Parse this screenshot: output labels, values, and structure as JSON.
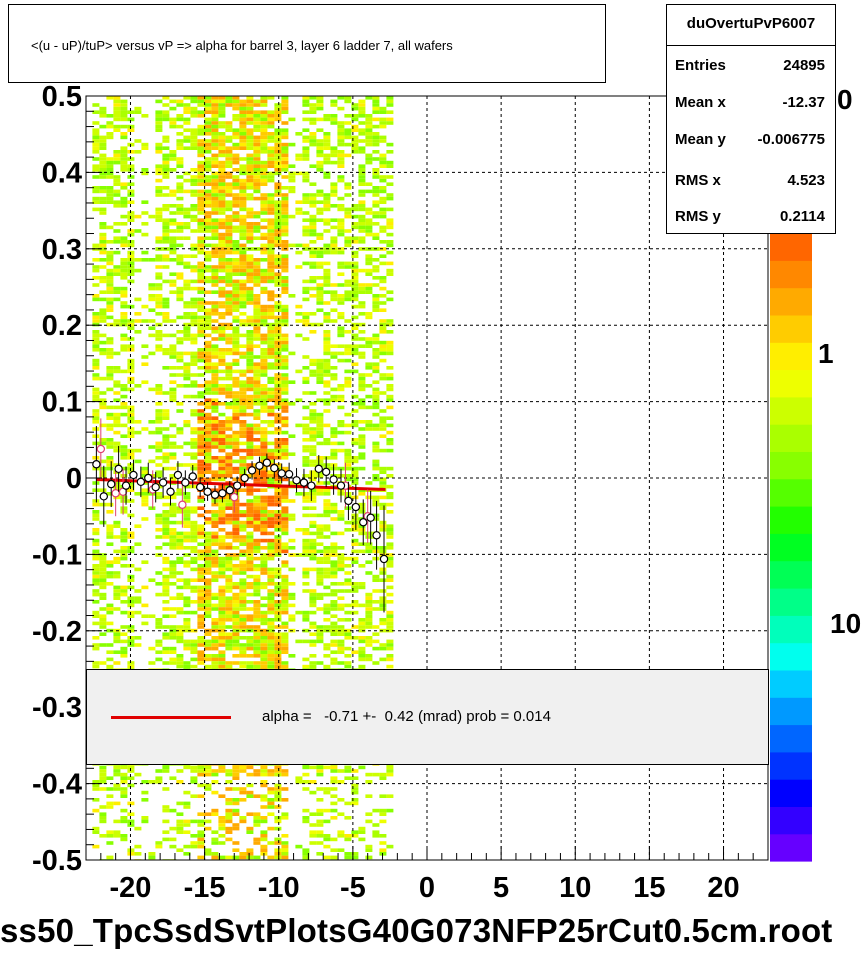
{
  "title": "<(u - uP)/tuP> versus   vP => alpha for barrel 3, layer 6 ladder 7, all wafers",
  "stats": {
    "name": "duOvertuPvP6007",
    "rows": [
      {
        "label": "Entries",
        "value": "24895"
      },
      {
        "label": "Mean x",
        "value": "-12.37"
      },
      {
        "label": "Mean y",
        "value": "-0.006775"
      },
      {
        "label": "RMS x",
        "value": "4.523"
      },
      {
        "label": "RMS y",
        "value": "0.2114"
      }
    ]
  },
  "legend": {
    "text": "alpha =   -0.71 +-  0.42 (mrad) prob = 0.014",
    "line_color": "#e00000"
  },
  "footer": "ss50_TpcSsdSvtPlotsG40G073NFP25rCut0.5cm.root",
  "zaxis": {
    "ticks": [
      "0",
      "1",
      "10"
    ],
    "palette": [
      "#6600ff",
      "#3300ff",
      "#0000ff",
      "#0033ff",
      "#0066ff",
      "#0099ff",
      "#00ccff",
      "#00ffee",
      "#00ffbb",
      "#00ff88",
      "#00ff55",
      "#00ff22",
      "#22ff00",
      "#55ff00",
      "#88ff00",
      "#aaff00",
      "#ccff00",
      "#eeff00",
      "#ffee00",
      "#ffcc00",
      "#ffaa00",
      "#ff8800",
      "#ff6600"
    ]
  },
  "chart_data": {
    "type": "scatter",
    "xlim": [
      -23,
      23
    ],
    "ylim": [
      -0.5,
      0.5
    ],
    "xticks": [
      -20,
      -15,
      -10,
      -5,
      0,
      5,
      10,
      15,
      20
    ],
    "xtick_labels": [
      "-20",
      "-15",
      "-10",
      "-5",
      "0",
      "5",
      "10",
      "15",
      "20"
    ],
    "yticks": [
      -0.5,
      -0.4,
      -0.3,
      -0.2,
      -0.1,
      0,
      0.1,
      0.2,
      0.3,
      0.4,
      0.5
    ],
    "ytick_labels": [
      "-0.5",
      "-0.4",
      "-0.3",
      "-0.2",
      "-0.1",
      "0",
      "0.1",
      "0.2",
      "0.3",
      "0.4",
      "0.5"
    ],
    "grid": true,
    "heatmap_x_range": [
      -22.3,
      -2.8
    ],
    "heatmap_hot_x_range": [
      -15.5,
      -9.5
    ],
    "profile_points": [
      {
        "x": -22.3,
        "y": 0.018,
        "err": 0.05
      },
      {
        "x": -21.8,
        "y": -0.024,
        "err": 0.04
      },
      {
        "x": -21.3,
        "y": -0.008,
        "err": 0.03
      },
      {
        "x": -20.8,
        "y": 0.012,
        "err": 0.03
      },
      {
        "x": -20.3,
        "y": -0.01,
        "err": 0.025
      },
      {
        "x": -19.8,
        "y": 0.004,
        "err": 0.02
      },
      {
        "x": -19.3,
        "y": -0.005,
        "err": 0.02
      },
      {
        "x": -18.8,
        "y": 0.0,
        "err": 0.02
      },
      {
        "x": -18.3,
        "y": -0.012,
        "err": 0.02
      },
      {
        "x": -17.8,
        "y": -0.006,
        "err": 0.02
      },
      {
        "x": -17.3,
        "y": -0.018,
        "err": 0.018
      },
      {
        "x": -16.8,
        "y": 0.004,
        "err": 0.018
      },
      {
        "x": -16.3,
        "y": -0.006,
        "err": 0.016
      },
      {
        "x": -15.8,
        "y": 0.002,
        "err": 0.015
      },
      {
        "x": -15.3,
        "y": -0.012,
        "err": 0.013
      },
      {
        "x": -14.8,
        "y": -0.018,
        "err": 0.012
      },
      {
        "x": -14.3,
        "y": -0.022,
        "err": 0.012
      },
      {
        "x": -13.8,
        "y": -0.02,
        "err": 0.012
      },
      {
        "x": -13.3,
        "y": -0.016,
        "err": 0.012
      },
      {
        "x": -12.8,
        "y": -0.01,
        "err": 0.012
      },
      {
        "x": -12.3,
        "y": 0.0,
        "err": 0.012
      },
      {
        "x": -11.8,
        "y": 0.01,
        "err": 0.012
      },
      {
        "x": -11.3,
        "y": 0.016,
        "err": 0.012
      },
      {
        "x": -10.8,
        "y": 0.02,
        "err": 0.012
      },
      {
        "x": -10.3,
        "y": 0.013,
        "err": 0.012
      },
      {
        "x": -9.8,
        "y": 0.006,
        "err": 0.013
      },
      {
        "x": -9.3,
        "y": 0.005,
        "err": 0.015
      },
      {
        "x": -8.8,
        "y": -0.003,
        "err": 0.016
      },
      {
        "x": -8.3,
        "y": -0.006,
        "err": 0.018
      },
      {
        "x": -7.8,
        "y": -0.01,
        "err": 0.02
      },
      {
        "x": -7.3,
        "y": 0.012,
        "err": 0.018
      },
      {
        "x": -6.8,
        "y": 0.008,
        "err": 0.02
      },
      {
        "x": -6.3,
        "y": -0.002,
        "err": 0.02
      },
      {
        "x": -5.8,
        "y": -0.01,
        "err": 0.022
      },
      {
        "x": -5.3,
        "y": -0.03,
        "err": 0.025
      },
      {
        "x": -4.8,
        "y": -0.038,
        "err": 0.03
      },
      {
        "x": -4.3,
        "y": -0.058,
        "err": 0.03
      },
      {
        "x": -3.8,
        "y": -0.052,
        "err": 0.035
      },
      {
        "x": -3.4,
        "y": -0.075,
        "err": 0.045
      },
      {
        "x": -2.9,
        "y": -0.106,
        "err": 0.07
      }
    ],
    "secondary_points": [
      {
        "x": -22.0,
        "y": 0.038,
        "err": 0.04
      },
      {
        "x": -21.0,
        "y": -0.02,
        "err": 0.03
      },
      {
        "x": -20.5,
        "y": -0.018,
        "err": 0.03
      },
      {
        "x": -18.5,
        "y": -0.015,
        "err": 0.025
      },
      {
        "x": -16.5,
        "y": -0.035,
        "err": 0.03
      },
      {
        "x": -13.0,
        "y": -0.025,
        "err": 0.02
      },
      {
        "x": -5.5,
        "y": -0.01,
        "err": 0.03
      },
      {
        "x": -4.0,
        "y": -0.05,
        "err": 0.035
      }
    ],
    "fit_line": {
      "x": [
        -22.3,
        -2.8
      ],
      "y": [
        -0.002,
        -0.015
      ]
    }
  }
}
